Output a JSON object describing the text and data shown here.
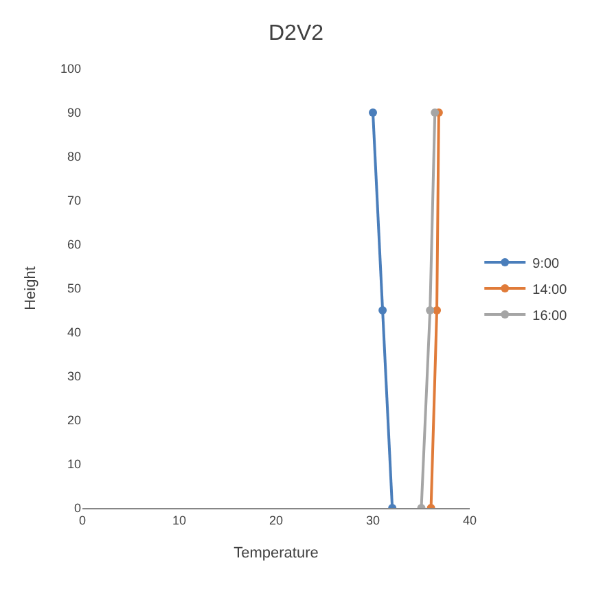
{
  "chart_data": {
    "type": "line",
    "title": "D2V2",
    "xlabel": "Temperature",
    "ylabel": "Height",
    "xlim": [
      0,
      40
    ],
    "xticks": [
      0,
      10,
      20,
      30,
      40
    ],
    "ylim": [
      0,
      100
    ],
    "yticks": [
      0,
      10,
      20,
      30,
      40,
      50,
      60,
      70,
      80,
      90,
      100
    ],
    "grid": false,
    "legend": "right",
    "marker": "circle",
    "series": [
      {
        "name": "9:00",
        "color": "#4a7ebb",
        "x": [
          30,
          31,
          32
        ],
        "values": [
          90,
          45,
          0
        ]
      },
      {
        "name": "14:00",
        "color": "#e07b39",
        "x": [
          36.8,
          36.6,
          36
        ],
        "values": [
          90,
          45,
          0
        ]
      },
      {
        "name": "16:00",
        "color": "#a5a5a5",
        "x": [
          36.4,
          35.9,
          35
        ],
        "values": [
          90,
          45,
          0
        ]
      }
    ]
  }
}
